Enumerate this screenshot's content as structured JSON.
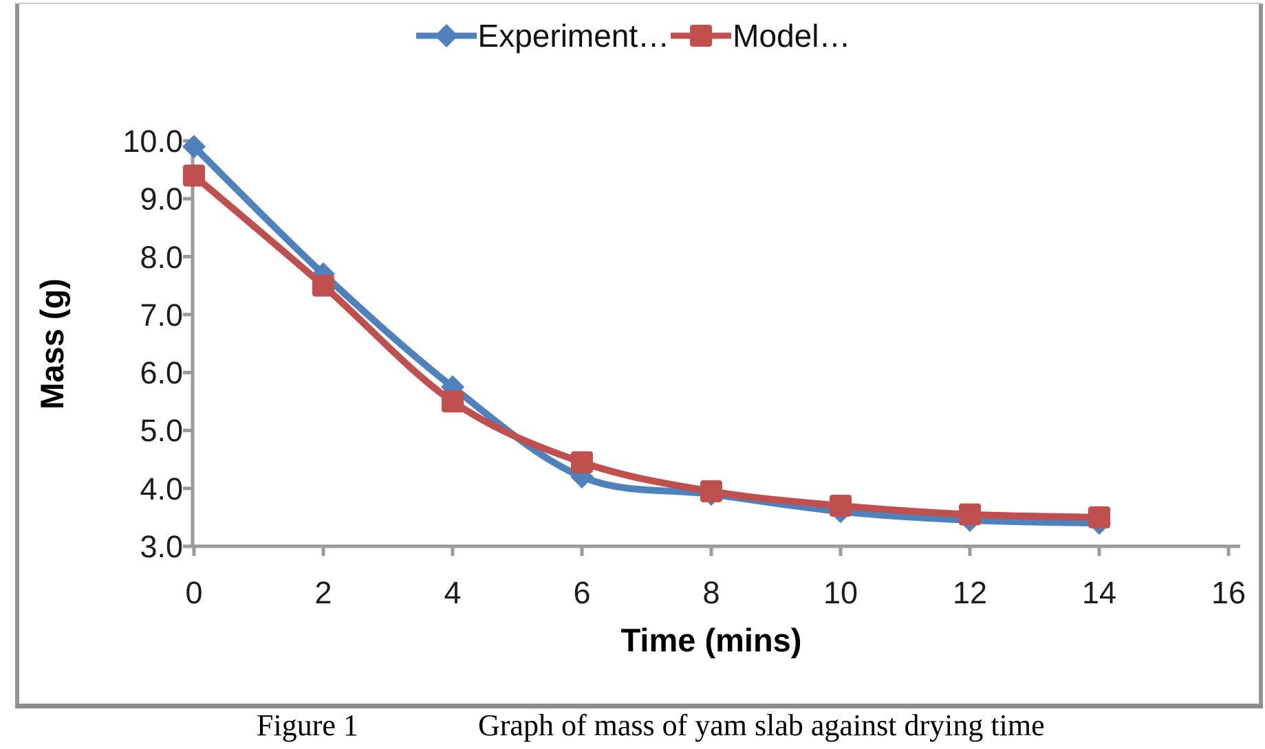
{
  "chart_data": {
    "type": "line",
    "x": [
      0,
      2,
      4,
      6,
      8,
      10,
      12,
      14
    ],
    "series": [
      {
        "name": "Experiment…",
        "color": "#4F81BD",
        "marker": "diamond",
        "values": [
          9.9,
          7.7,
          5.75,
          4.2,
          3.9,
          3.6,
          3.45,
          3.4
        ]
      },
      {
        "name": "Model…",
        "color": "#C0504D",
        "marker": "square",
        "values": [
          9.4,
          7.5,
          5.5,
          4.45,
          3.95,
          3.7,
          3.55,
          3.5
        ]
      }
    ],
    "title": "",
    "xlabel": "Time (mins)",
    "ylabel": "Mass (g)",
    "xlim": [
      0,
      16
    ],
    "ylim": [
      3.0,
      10.0
    ],
    "x_ticks": [
      "0",
      "2",
      "4",
      "6",
      "8",
      "10",
      "12",
      "14",
      "16"
    ],
    "y_ticks": [
      "10.0",
      "9.0",
      "8.0",
      "7.0",
      "6.0",
      "5.0",
      "4.0",
      "3.0"
    ],
    "y_tick_values": [
      10.0,
      9.0,
      8.0,
      7.0,
      6.0,
      5.0,
      4.0,
      3.0
    ],
    "x_tick_values": [
      0,
      2,
      4,
      6,
      8,
      10,
      12,
      14,
      16
    ],
    "grid": false,
    "smooth_lines": true,
    "legend_position": "top-center"
  },
  "legend": {
    "items": [
      {
        "label": "Experiment…",
        "marker": "diamond-icon",
        "color": "#4F81BD"
      },
      {
        "label": "Model…",
        "marker": "square-icon",
        "color": "#C0504D"
      }
    ]
  },
  "caption": {
    "figure_label": "Figure 1",
    "text": "Graph of mass of yam slab against drying time"
  },
  "colors": {
    "series_blue": "#4F81BD",
    "series_red": "#C0504D",
    "axis_gray": "#9a9a9a",
    "border_gray": "#949494",
    "separator_gray": "#8c8c8c",
    "text_dark": "#1c1c1c"
  }
}
